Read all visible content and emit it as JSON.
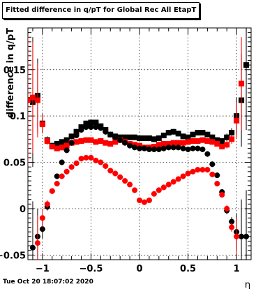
{
  "title": "Fitted difference in q/pT for Global Rec All EtapT",
  "timestamp": "Tue Oct 20 18:07:02 2020",
  "chart_data": {
    "type": "scatter",
    "title": "Fitted difference in q/pT for Global Rec All EtapT",
    "xlabel": "η",
    "ylabel": "difference in q/pT",
    "xlim": [
      -1.15,
      1.15
    ],
    "ylim": [
      -0.055,
      0.195
    ],
    "xticks": [
      -1,
      -0.5,
      0,
      0.5,
      1
    ],
    "xtick_labels": [
      "−1",
      "−0.5",
      "0",
      "0.5",
      "1"
    ],
    "yticks": [
      -0.05,
      0,
      0.05,
      0.1,
      0.15
    ],
    "ytick_labels": [
      "−0.05",
      "0",
      "0.05",
      "0.1",
      "0.15"
    ],
    "grid": true,
    "series": [
      {
        "marker": "square",
        "color": "#000000",
        "points": [
          [
            -1.1,
            0.115,
            0.07
          ],
          [
            -1.05,
            0.122,
            0.04
          ],
          [
            -1.0,
            0.092,
            0.01
          ],
          [
            -0.95,
            0.074,
            0.004
          ],
          [
            -0.9,
            0.068,
            0.003
          ],
          [
            -0.85,
            0.07,
            0.003
          ],
          [
            -0.8,
            0.072,
            0.003
          ],
          [
            -0.75,
            0.074,
            0.003
          ],
          [
            -0.7,
            0.078,
            0.003
          ],
          [
            -0.65,
            0.083,
            0.003
          ],
          [
            -0.6,
            0.088,
            0.003
          ],
          [
            -0.55,
            0.092,
            0.003
          ],
          [
            -0.5,
            0.093,
            0.003
          ],
          [
            -0.45,
            0.093,
            0.003
          ],
          [
            -0.4,
            0.089,
            0.003
          ],
          [
            -0.35,
            0.085,
            0.003
          ],
          [
            -0.3,
            0.08,
            0.003
          ],
          [
            -0.25,
            0.078,
            0.003
          ],
          [
            -0.2,
            0.077,
            0.003
          ],
          [
            -0.15,
            0.077,
            0.003
          ],
          [
            -0.1,
            0.077,
            0.003
          ],
          [
            -0.05,
            0.077,
            0.003
          ],
          [
            0.0,
            0.076,
            0.003
          ],
          [
            0.05,
            0.076,
            0.003
          ],
          [
            0.1,
            0.076,
            0.003
          ],
          [
            0.15,
            0.075,
            0.003
          ],
          [
            0.2,
            0.076,
            0.003
          ],
          [
            0.25,
            0.079,
            0.003
          ],
          [
            0.3,
            0.082,
            0.003
          ],
          [
            0.35,
            0.083,
            0.003
          ],
          [
            0.4,
            0.081,
            0.003
          ],
          [
            0.45,
            0.078,
            0.003
          ],
          [
            0.5,
            0.077,
            0.003
          ],
          [
            0.55,
            0.08,
            0.003
          ],
          [
            0.6,
            0.082,
            0.003
          ],
          [
            0.65,
            0.082,
            0.003
          ],
          [
            0.7,
            0.08,
            0.003
          ],
          [
            0.75,
            0.077,
            0.003
          ],
          [
            0.8,
            0.074,
            0.003
          ],
          [
            0.85,
            0.073,
            0.003
          ],
          [
            0.9,
            0.077,
            0.004
          ],
          [
            0.95,
            0.082,
            0.005
          ],
          [
            1.0,
            0.1,
            0.02
          ],
          [
            1.05,
            0.117,
            0.05
          ],
          [
            1.1,
            0.155,
            0.07
          ]
        ]
      },
      {
        "marker": "square",
        "color": "#ff0000",
        "points": [
          [
            -1.15,
            0.117,
            0.07
          ],
          [
            -1.1,
            0.12,
            0.06
          ],
          [
            -1.05,
            0.117,
            0.04
          ],
          [
            -1.0,
            0.091,
            0.01
          ],
          [
            -0.95,
            0.073,
            0.004
          ],
          [
            -0.9,
            0.067,
            0.003
          ],
          [
            -0.85,
            0.065,
            0.003
          ],
          [
            -0.8,
            0.066,
            0.003
          ],
          [
            -0.75,
            0.068,
            0.003
          ],
          [
            -0.7,
            0.071,
            0.003
          ],
          [
            -0.65,
            0.072,
            0.003
          ],
          [
            -0.6,
            0.073,
            0.003
          ],
          [
            -0.55,
            0.074,
            0.003
          ],
          [
            -0.5,
            0.074,
            0.003
          ],
          [
            -0.45,
            0.072,
            0.003
          ],
          [
            -0.4,
            0.073,
            0.003
          ],
          [
            -0.35,
            0.071,
            0.003
          ],
          [
            -0.3,
            0.07,
            0.003
          ],
          [
            -0.25,
            0.072,
            0.003
          ],
          [
            -0.2,
            0.074,
            0.003
          ],
          [
            -0.15,
            0.072,
            0.003
          ],
          [
            -0.1,
            0.07,
            0.003
          ],
          [
            -0.05,
            0.069,
            0.003
          ],
          [
            0.0,
            0.068,
            0.003
          ],
          [
            0.05,
            0.066,
            0.003
          ],
          [
            0.1,
            0.066,
            0.003
          ],
          [
            0.15,
            0.067,
            0.003
          ],
          [
            0.2,
            0.069,
            0.003
          ],
          [
            0.25,
            0.07,
            0.003
          ],
          [
            0.3,
            0.07,
            0.003
          ],
          [
            0.35,
            0.071,
            0.003
          ],
          [
            0.4,
            0.071,
            0.003
          ],
          [
            0.45,
            0.071,
            0.003
          ],
          [
            0.5,
            0.072,
            0.003
          ],
          [
            0.55,
            0.073,
            0.003
          ],
          [
            0.6,
            0.073,
            0.003
          ],
          [
            0.65,
            0.074,
            0.003
          ],
          [
            0.7,
            0.073,
            0.003
          ],
          [
            0.75,
            0.072,
            0.003
          ],
          [
            0.8,
            0.07,
            0.003
          ],
          [
            0.85,
            0.067,
            0.003
          ],
          [
            0.9,
            0.069,
            0.004
          ],
          [
            0.95,
            0.075,
            0.005
          ],
          [
            1.0,
            0.095,
            0.02
          ],
          [
            1.05,
            0.135,
            0.05
          ]
        ]
      },
      {
        "marker": "circle",
        "color": "#000000",
        "points": [
          [
            -1.1,
            -0.042,
            0.05
          ],
          [
            -1.05,
            -0.03,
            0.03
          ],
          [
            -1.0,
            -0.022,
            0.01
          ],
          [
            -0.95,
            0.002,
            0.004
          ],
          [
            -0.9,
            0.019,
            0.003
          ],
          [
            -0.85,
            0.035,
            0.003
          ],
          [
            -0.8,
            0.05,
            0.003
          ],
          [
            -0.75,
            0.063,
            0.003
          ],
          [
            -0.7,
            0.071,
            0.003
          ],
          [
            -0.65,
            0.079,
            0.003
          ],
          [
            -0.6,
            0.085,
            0.003
          ],
          [
            -0.55,
            0.088,
            0.003
          ],
          [
            -0.5,
            0.088,
            0.003
          ],
          [
            -0.45,
            0.088,
            0.003
          ],
          [
            -0.4,
            0.087,
            0.003
          ],
          [
            -0.35,
            0.083,
            0.003
          ],
          [
            -0.3,
            0.08,
            0.003
          ],
          [
            -0.25,
            0.077,
            0.003
          ],
          [
            -0.2,
            0.074,
            0.003
          ],
          [
            -0.15,
            0.071,
            0.003
          ],
          [
            -0.1,
            0.068,
            0.003
          ],
          [
            -0.05,
            0.066,
            0.003
          ],
          [
            0.0,
            0.065,
            0.003
          ],
          [
            0.05,
            0.065,
            0.003
          ],
          [
            0.1,
            0.064,
            0.003
          ],
          [
            0.15,
            0.064,
            0.003
          ],
          [
            0.2,
            0.064,
            0.003
          ],
          [
            0.25,
            0.065,
            0.003
          ],
          [
            0.3,
            0.066,
            0.003
          ],
          [
            0.35,
            0.066,
            0.003
          ],
          [
            0.4,
            0.066,
            0.003
          ],
          [
            0.45,
            0.065,
            0.003
          ],
          [
            0.5,
            0.064,
            0.003
          ],
          [
            0.55,
            0.065,
            0.003
          ],
          [
            0.6,
            0.065,
            0.003
          ],
          [
            0.65,
            0.064,
            0.003
          ],
          [
            0.7,
            0.059,
            0.003
          ],
          [
            0.75,
            0.048,
            0.003
          ],
          [
            0.8,
            0.036,
            0.003
          ],
          [
            0.85,
            0.018,
            0.003
          ],
          [
            0.9,
            -0.002,
            0.004
          ],
          [
            0.95,
            -0.014,
            0.005
          ],
          [
            1.0,
            -0.025,
            0.02
          ],
          [
            1.05,
            -0.03,
            0.04
          ],
          [
            1.1,
            -0.03,
            0.05
          ]
        ]
      },
      {
        "marker": "circle",
        "color": "#ff0000",
        "points": [
          [
            -1.05,
            -0.037,
            0.03
          ],
          [
            -1.0,
            -0.01,
            0.01
          ],
          [
            -0.95,
            0.005,
            0.004
          ],
          [
            -0.9,
            0.019,
            0.003
          ],
          [
            -0.85,
            0.027,
            0.003
          ],
          [
            -0.8,
            0.035,
            0.003
          ],
          [
            -0.75,
            0.04,
            0.003
          ],
          [
            -0.7,
            0.045,
            0.003
          ],
          [
            -0.65,
            0.049,
            0.003
          ],
          [
            -0.6,
            0.054,
            0.003
          ],
          [
            -0.55,
            0.055,
            0.003
          ],
          [
            -0.5,
            0.055,
            0.003
          ],
          [
            -0.45,
            0.052,
            0.003
          ],
          [
            -0.4,
            0.05,
            0.003
          ],
          [
            -0.35,
            0.046,
            0.003
          ],
          [
            -0.3,
            0.041,
            0.003
          ],
          [
            -0.25,
            0.038,
            0.003
          ],
          [
            -0.2,
            0.034,
            0.003
          ],
          [
            -0.15,
            0.03,
            0.003
          ],
          [
            -0.1,
            0.026,
            0.003
          ],
          [
            -0.05,
            0.02,
            0.003
          ],
          [
            0.0,
            0.009,
            0.003
          ],
          [
            0.05,
            0.007,
            0.003
          ],
          [
            0.1,
            0.009,
            0.003
          ],
          [
            0.15,
            0.016,
            0.003
          ],
          [
            0.2,
            0.02,
            0.003
          ],
          [
            0.25,
            0.023,
            0.003
          ],
          [
            0.3,
            0.026,
            0.003
          ],
          [
            0.35,
            0.029,
            0.003
          ],
          [
            0.4,
            0.032,
            0.003
          ],
          [
            0.45,
            0.035,
            0.003
          ],
          [
            0.5,
            0.038,
            0.003
          ],
          [
            0.55,
            0.04,
            0.003
          ],
          [
            0.6,
            0.042,
            0.003
          ],
          [
            0.65,
            0.042,
            0.003
          ],
          [
            0.7,
            0.042,
            0.003
          ],
          [
            0.75,
            0.037,
            0.003
          ],
          [
            0.8,
            0.027,
            0.003
          ],
          [
            0.85,
            0.015,
            0.003
          ],
          [
            0.9,
            0.0,
            0.004
          ],
          [
            0.95,
            -0.02,
            0.005
          ],
          [
            1.0,
            -0.03,
            0.02
          ]
        ]
      }
    ]
  }
}
